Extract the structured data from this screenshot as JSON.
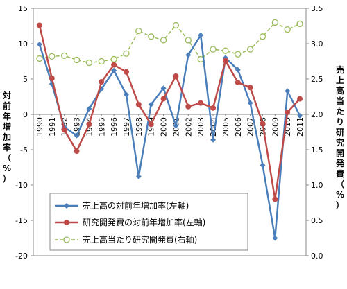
{
  "chart_data": {
    "type": "line",
    "categories": [
      "1990",
      "1991",
      "1992",
      "1993",
      "1994",
      "1995",
      "1996",
      "1997",
      "1998",
      "1999",
      "2000",
      "2001",
      "2002",
      "2003",
      "2004",
      "2005",
      "2006",
      "2007",
      "2008",
      "2009",
      "2010",
      "2011"
    ],
    "left_axis": {
      "label": "対前年増加率（%）",
      "ylim": [
        -20,
        15
      ],
      "ticks": [
        "15",
        "10",
        "5",
        "0",
        "-5",
        "-10",
        "-15",
        "-20"
      ]
    },
    "right_axis": {
      "label": "売上高当たり研究開発費（%）",
      "ylim": [
        0.0,
        3.5
      ],
      "ticks": [
        "3.5",
        "3.0",
        "2.5",
        "2.0",
        "1.5",
        "1.0",
        "0.5",
        "0.0"
      ]
    },
    "series": [
      {
        "name": "売上高の対前年増加率(左軸)",
        "axis": "left",
        "color": "#4a7ebb",
        "marker": "diamond",
        "values": [
          9.9,
          4.3,
          -1.8,
          -3.0,
          0.8,
          3.6,
          6.2,
          2.8,
          -8.8,
          1.4,
          3.7,
          -1.6,
          8.4,
          11.2,
          -3.6,
          8.0,
          6.3,
          1.6,
          -7.2,
          -17.5,
          3.3,
          -0.2
        ]
      },
      {
        "name": "研究開発費の対前年増加率(左軸)",
        "axis": "left",
        "color": "#be4b48",
        "marker": "circle",
        "values": [
          12.6,
          5.1,
          -2.2,
          -5.2,
          -1.4,
          4.6,
          7.0,
          6.0,
          1.4,
          -1.4,
          2.2,
          5.4,
          1.1,
          1.6,
          0.9,
          7.6,
          4.5,
          3.8,
          -1.3,
          -12.0,
          0.3,
          2.2
        ]
      },
      {
        "name": "売上高当たり研究開発費(右軸)",
        "axis": "right",
        "color": "#9bbb59",
        "marker": "open-circle",
        "dashed": true,
        "values": [
          2.79,
          2.82,
          2.83,
          2.77,
          2.73,
          2.75,
          2.78,
          2.86,
          3.18,
          3.1,
          3.05,
          3.26,
          3.05,
          2.78,
          2.92,
          2.9,
          2.85,
          2.92,
          3.1,
          3.3,
          3.2,
          3.28
        ]
      }
    ],
    "legend_position": "bottom-left-inside",
    "grid": false
  }
}
